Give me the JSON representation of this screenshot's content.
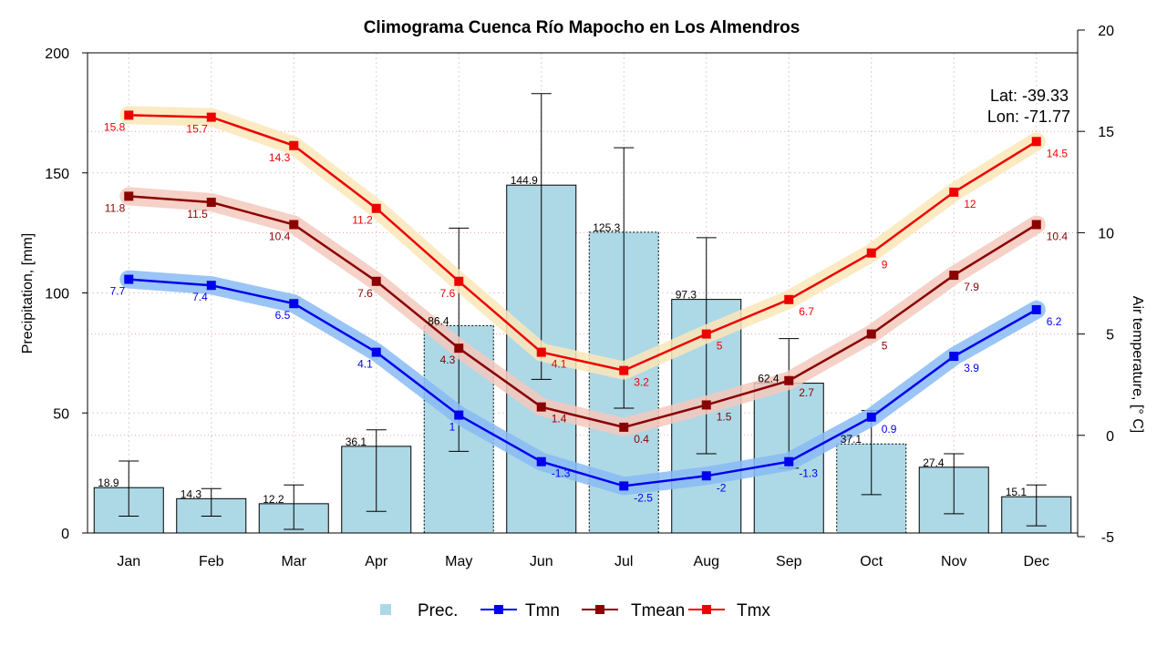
{
  "chart_data": {
    "type": "bar",
    "title": "Climograma Cuenca Río Mapocho en Los Almendros",
    "categories": [
      "Jan",
      "Feb",
      "Mar",
      "Apr",
      "May",
      "Jun",
      "Jul",
      "Aug",
      "Sep",
      "Oct",
      "Nov",
      "Dec"
    ],
    "ylabel": "Precipitation, [mm]",
    "ylim": [
      0,
      200
    ],
    "y_ticks": [
      "0",
      "50",
      "100",
      "150",
      "200"
    ],
    "y2label": "Air temperature, [° C]",
    "y2lim": [
      -5,
      20
    ],
    "y2_ticks": [
      "-5",
      "0",
      "5",
      "10",
      "15",
      "20"
    ],
    "grid": true,
    "legend_position": "bottom",
    "annotation": [
      "Lat: -39.33",
      "Lon: -71.77"
    ],
    "precipitation": {
      "name": "Prec.",
      "color": "#add8e6",
      "values": [
        18.9,
        14.3,
        12.2,
        36.1,
        86.4,
        144.9,
        125.3,
        97.3,
        62.4,
        37.1,
        27.4,
        15.1
      ],
      "labels": [
        "18.9",
        "14.3",
        "12.2",
        "36.1",
        "86.4",
        "144.9",
        "125.3",
        "97.3",
        "62.4",
        "37.1",
        "27.4",
        "15.1"
      ],
      "error_low": [
        7,
        7,
        1.5,
        9,
        34,
        64,
        52,
        33,
        27,
        16,
        8,
        3
      ],
      "error_high": [
        30,
        18.5,
        20,
        43,
        127,
        183,
        160.5,
        123,
        81,
        51,
        33,
        20
      ]
    },
    "series": [
      {
        "name": "Tmn",
        "color": "#0000ee",
        "band": "#88bbf5",
        "values": [
          7.7,
          7.4,
          6.5,
          4.1,
          1,
          -1.3,
          -2.5,
          -2,
          -1.3,
          0.9,
          3.9,
          6.2
        ],
        "labels": [
          "7.7",
          "7.4",
          "6.5",
          "4.1",
          "1",
          "-1.3",
          "-2.5",
          "-2",
          "-1.3",
          "0.9",
          "3.9",
          "6.2"
        ]
      },
      {
        "name": "Tmean",
        "color": "#8b0000",
        "band": "#f3c9bd",
        "values": [
          11.8,
          11.5,
          10.4,
          7.6,
          4.3,
          1.4,
          0.4,
          1.5,
          2.7,
          5,
          7.9,
          10.4
        ],
        "labels": [
          "11.8",
          "11.5",
          "10.4",
          "7.6",
          "4.3",
          "1.4",
          "0.4",
          "1.5",
          "2.7",
          "5",
          "7.9",
          "10.4"
        ]
      },
      {
        "name": "Tmx",
        "color": "#ee0000",
        "band": "#fbe6b8",
        "values": [
          15.8,
          15.7,
          14.3,
          11.2,
          7.6,
          4.1,
          3.2,
          5,
          6.7,
          9,
          12,
          14.5
        ],
        "labels": [
          "15.8",
          "15.7",
          "14.3",
          "11.2",
          "7.6",
          "4.1",
          "3.2",
          "5",
          "6.7",
          "9",
          "12",
          "14.5"
        ]
      }
    ]
  }
}
